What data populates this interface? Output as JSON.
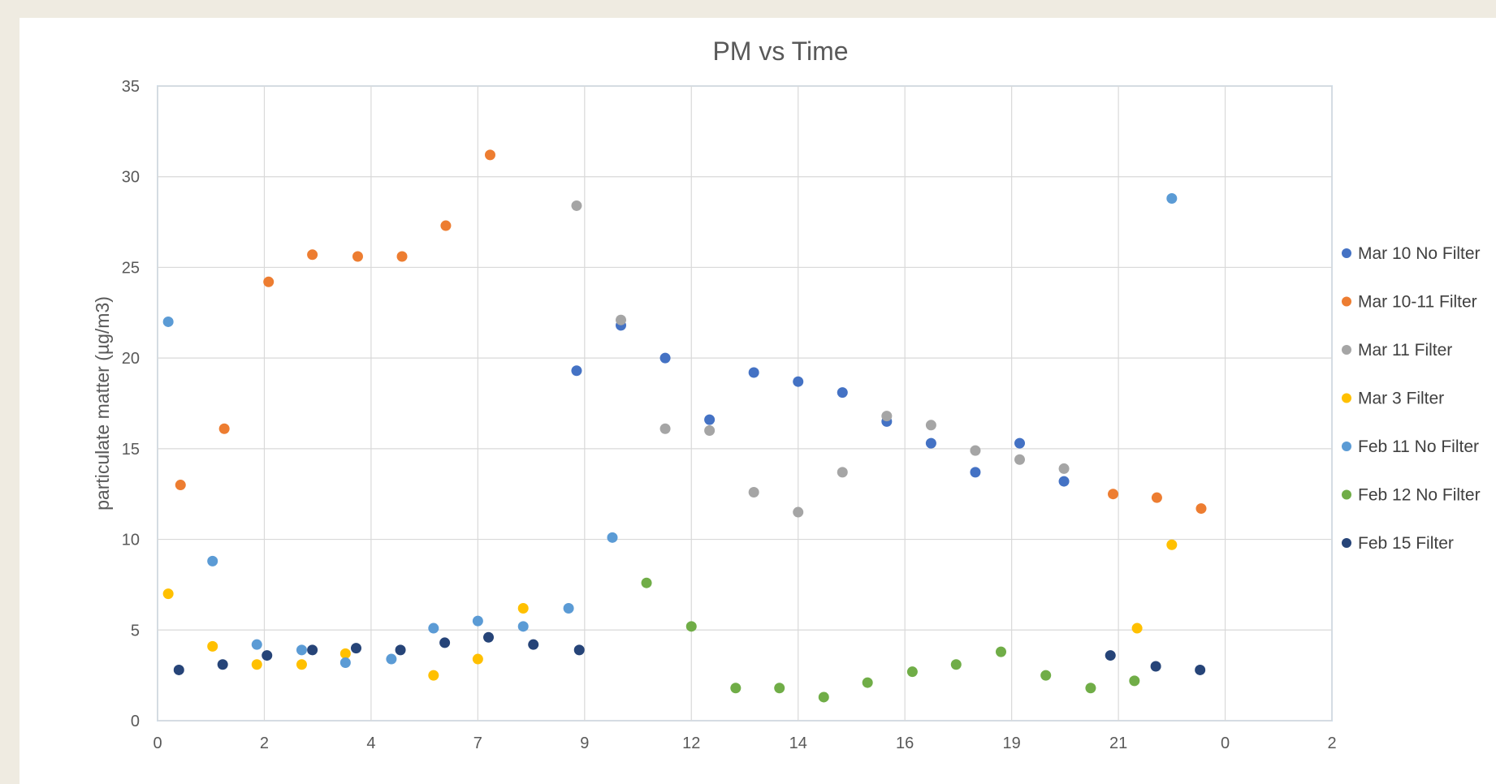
{
  "chart_data": {
    "type": "scatter",
    "title": "PM vs Time",
    "xlabel": "",
    "ylabel": "particulate matter  (µg/m3)",
    "xlim": [
      0,
      22
    ],
    "ylim": [
      0,
      35
    ],
    "y_ticks": [
      0,
      5,
      10,
      15,
      20,
      25,
      30,
      35
    ],
    "x_tick_labels": [
      "0",
      "2",
      "4",
      "7",
      "9",
      "12",
      "14",
      "16",
      "19",
      "21",
      "0",
      "2"
    ],
    "grid": true,
    "legend_position": "right",
    "series": [
      {
        "name": "Mar 10 No Filter",
        "color": "#4472c4",
        "points": [
          [
            7.85,
            19.3
          ],
          [
            8.68,
            21.8
          ],
          [
            9.51,
            20.0
          ],
          [
            10.34,
            16.6
          ],
          [
            11.17,
            19.2
          ],
          [
            12.0,
            18.7
          ],
          [
            12.83,
            18.1
          ],
          [
            13.66,
            16.5
          ],
          [
            14.49,
            15.3
          ],
          [
            15.32,
            13.7
          ],
          [
            16.15,
            15.3
          ],
          [
            16.98,
            13.2
          ]
        ]
      },
      {
        "name": "Mar 10-11 Filter",
        "color": "#ed7d31",
        "points": [
          [
            0.43,
            13.0
          ],
          [
            1.25,
            16.1
          ],
          [
            2.08,
            24.2
          ],
          [
            2.9,
            25.7
          ],
          [
            3.75,
            25.6
          ],
          [
            4.58,
            25.6
          ],
          [
            5.4,
            27.3
          ],
          [
            6.23,
            31.2
          ],
          [
            17.9,
            12.5
          ],
          [
            18.72,
            12.3
          ],
          [
            19.55,
            11.7
          ]
        ]
      },
      {
        "name": "Mar 11 Filter",
        "color": "#a5a5a5",
        "points": [
          [
            7.85,
            28.4
          ],
          [
            8.68,
            22.1
          ],
          [
            9.51,
            16.1
          ],
          [
            10.34,
            16.0
          ],
          [
            11.17,
            12.6
          ],
          [
            12.0,
            11.5
          ],
          [
            12.83,
            13.7
          ],
          [
            13.66,
            16.8
          ],
          [
            14.49,
            16.3
          ],
          [
            15.32,
            14.9
          ],
          [
            16.15,
            14.4
          ],
          [
            16.98,
            13.9
          ]
        ]
      },
      {
        "name": "Mar 3 Filter",
        "color": "#ffc000",
        "points": [
          [
            0.2,
            7.0
          ],
          [
            1.03,
            4.1
          ],
          [
            1.86,
            3.1
          ],
          [
            2.7,
            3.1
          ],
          [
            3.52,
            3.7
          ],
          [
            5.17,
            2.5
          ],
          [
            6.0,
            3.4
          ],
          [
            6.85,
            6.2
          ],
          [
            18.35,
            5.1
          ],
          [
            19.0,
            9.7
          ]
        ]
      },
      {
        "name": "Feb 11 No Filter",
        "color": "#5b9bd5",
        "points": [
          [
            0.2,
            22.0
          ],
          [
            1.03,
            8.8
          ],
          [
            1.86,
            4.2
          ],
          [
            2.7,
            3.9
          ],
          [
            3.52,
            3.2
          ],
          [
            4.38,
            3.4
          ],
          [
            5.17,
            5.1
          ],
          [
            6.0,
            5.5
          ],
          [
            6.85,
            5.2
          ],
          [
            7.7,
            6.2
          ],
          [
            8.52,
            10.1
          ],
          [
            19.0,
            28.8
          ]
        ]
      },
      {
        "name": "Feb 12 No Filter",
        "color": "#70ad47",
        "points": [
          [
            9.16,
            7.6
          ],
          [
            10.0,
            5.2
          ],
          [
            10.83,
            1.8
          ],
          [
            11.65,
            1.8
          ],
          [
            12.48,
            1.3
          ],
          [
            13.3,
            2.1
          ],
          [
            14.14,
            2.7
          ],
          [
            14.96,
            3.1
          ],
          [
            15.8,
            3.8
          ],
          [
            16.64,
            2.5
          ],
          [
            17.48,
            1.8
          ],
          [
            18.3,
            2.2
          ]
        ]
      },
      {
        "name": "Feb 15 Filter",
        "color": "#264478",
        "points": [
          [
            0.4,
            2.8
          ],
          [
            1.22,
            3.1
          ],
          [
            2.05,
            3.6
          ],
          [
            2.9,
            3.9
          ],
          [
            3.72,
            4.0
          ],
          [
            4.55,
            3.9
          ],
          [
            5.38,
            4.3
          ],
          [
            6.2,
            4.6
          ],
          [
            7.04,
            4.2
          ],
          [
            7.9,
            3.9
          ],
          [
            17.85,
            3.6
          ],
          [
            18.7,
            3.0
          ],
          [
            19.53,
            2.8
          ]
        ]
      }
    ]
  }
}
